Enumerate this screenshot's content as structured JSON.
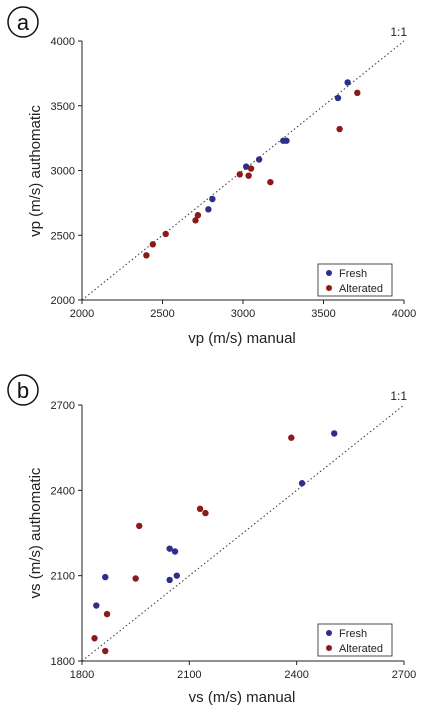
{
  "colors": {
    "fresh": "#2e2e8c",
    "altered": "#8b1a1a",
    "axis": "#222222",
    "refline": "#333333"
  },
  "chart_data": [
    {
      "type": "scatter",
      "panel_label": "a",
      "xlabel": "vp (m/s) manual",
      "ylabel": "vp (m/s) authomatic",
      "xlim": [
        2000,
        4000
      ],
      "ylim": [
        2000,
        4000
      ],
      "xticks": [
        2000,
        2500,
        3000,
        3500,
        4000
      ],
      "yticks": [
        2000,
        2500,
        3000,
        3500,
        4000
      ],
      "reference_line": {
        "label": "1:1"
      },
      "legend_position": "bottom-right",
      "series": [
        {
          "name": "Fresh",
          "color": "#2e2e8c",
          "points": [
            {
              "x": 2785,
              "y": 2700
            },
            {
              "x": 2810,
              "y": 2780
            },
            {
              "x": 3020,
              "y": 3030
            },
            {
              "x": 3100,
              "y": 3085
            },
            {
              "x": 3250,
              "y": 3230
            },
            {
              "x": 3270,
              "y": 3230
            },
            {
              "x": 3590,
              "y": 3560
            },
            {
              "x": 3650,
              "y": 3680
            }
          ]
        },
        {
          "name": "Alterated",
          "color": "#8b1a1a",
          "points": [
            {
              "x": 2400,
              "y": 2345
            },
            {
              "x": 2440,
              "y": 2430
            },
            {
              "x": 2520,
              "y": 2510
            },
            {
              "x": 2705,
              "y": 2615
            },
            {
              "x": 2720,
              "y": 2655
            },
            {
              "x": 2980,
              "y": 2970
            },
            {
              "x": 3035,
              "y": 2960
            },
            {
              "x": 3050,
              "y": 3015
            },
            {
              "x": 3170,
              "y": 2910
            },
            {
              "x": 3600,
              "y": 3320
            },
            {
              "x": 3710,
              "y": 3600
            }
          ]
        }
      ]
    },
    {
      "type": "scatter",
      "panel_label": "b",
      "xlabel": "vs (m/s) manual",
      "ylabel": "vs (m/s) authomatic",
      "xlim": [
        1800,
        2700
      ],
      "ylim": [
        1800,
        2700
      ],
      "xticks": [
        1800,
        2100,
        2400,
        2700
      ],
      "yticks": [
        1800,
        2100,
        2400,
        2700
      ],
      "reference_line": {
        "label": "1:1"
      },
      "legend_position": "bottom-right",
      "series": [
        {
          "name": "Fresh",
          "color": "#2e2e8c",
          "points": [
            {
              "x": 1840,
              "y": 1995
            },
            {
              "x": 1865,
              "y": 2095
            },
            {
              "x": 2045,
              "y": 2085
            },
            {
              "x": 2045,
              "y": 2195
            },
            {
              "x": 2060,
              "y": 2185
            },
            {
              "x": 2065,
              "y": 2100
            },
            {
              "x": 2415,
              "y": 2425
            },
            {
              "x": 2505,
              "y": 2600
            }
          ]
        },
        {
          "name": "Alterated",
          "color": "#8b1a1a",
          "points": [
            {
              "x": 1835,
              "y": 1880
            },
            {
              "x": 1865,
              "y": 1835
            },
            {
              "x": 1870,
              "y": 1965
            },
            {
              "x": 1950,
              "y": 2090
            },
            {
              "x": 1960,
              "y": 2275
            },
            {
              "x": 2130,
              "y": 2335
            },
            {
              "x": 2145,
              "y": 2320
            },
            {
              "x": 2385,
              "y": 2585
            }
          ]
        }
      ]
    }
  ]
}
